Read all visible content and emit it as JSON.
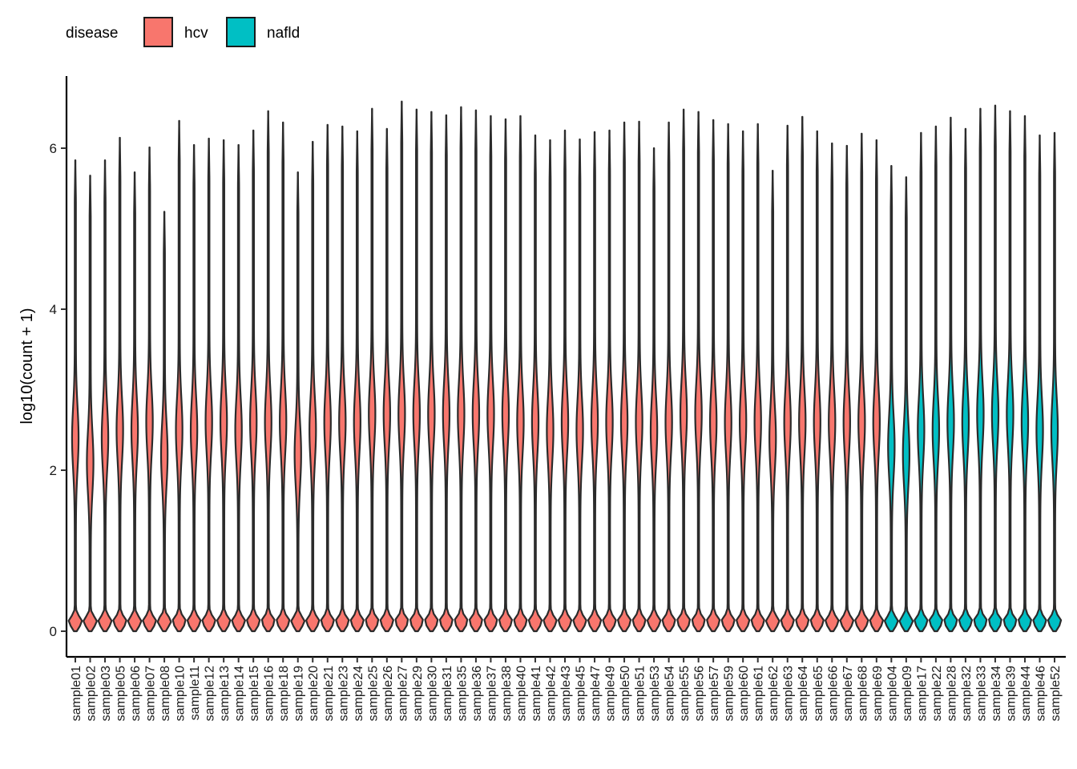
{
  "chart_data": {
    "type": "violin",
    "title": "",
    "xlabel": "",
    "ylabel": "log10(count + 1)",
    "ylim": [
      -0.3,
      6.9
    ],
    "yticks": [
      0,
      2,
      4,
      6
    ],
    "grid": false,
    "legend": {
      "title": "disease",
      "placement": "top-left",
      "items": [
        {
          "label": "hcv",
          "color": "#F8766D"
        },
        {
          "label": "nafld",
          "color": "#00BFC4"
        }
      ]
    },
    "groups": [
      {
        "name": "hcv",
        "color": "#F8766D"
      },
      {
        "name": "nafld",
        "color": "#00BFC4"
      }
    ],
    "categories": [
      "sample01",
      "sample02",
      "sample03",
      "sample05",
      "sample06",
      "sample07",
      "sample08",
      "sample10",
      "sample11",
      "sample12",
      "sample13",
      "sample14",
      "sample15",
      "sample16",
      "sample18",
      "sample19",
      "sample20",
      "sample21",
      "sample23",
      "sample24",
      "sample25",
      "sample26",
      "sample27",
      "sample29",
      "sample30",
      "sample31",
      "sample35",
      "sample36",
      "sample37",
      "sample38",
      "sample40",
      "sample41",
      "sample42",
      "sample43",
      "sample45",
      "sample47",
      "sample49",
      "sample50",
      "sample51",
      "sample53",
      "sample54",
      "sample55",
      "sample56",
      "sample57",
      "sample59",
      "sample60",
      "sample61",
      "sample62",
      "sample63",
      "sample64",
      "sample65",
      "sample66",
      "sample67",
      "sample68",
      "sample69",
      "sample04",
      "sample09",
      "sample17",
      "sample22",
      "sample28",
      "sample32",
      "sample33",
      "sample34",
      "sample39",
      "sample44",
      "sample46",
      "sample52"
    ],
    "disease": [
      "hcv",
      "hcv",
      "hcv",
      "hcv",
      "hcv",
      "hcv",
      "hcv",
      "hcv",
      "hcv",
      "hcv",
      "hcv",
      "hcv",
      "hcv",
      "hcv",
      "hcv",
      "hcv",
      "hcv",
      "hcv",
      "hcv",
      "hcv",
      "hcv",
      "hcv",
      "hcv",
      "hcv",
      "hcv",
      "hcv",
      "hcv",
      "hcv",
      "hcv",
      "hcv",
      "hcv",
      "hcv",
      "hcv",
      "hcv",
      "hcv",
      "hcv",
      "hcv",
      "hcv",
      "hcv",
      "hcv",
      "hcv",
      "hcv",
      "hcv",
      "hcv",
      "hcv",
      "hcv",
      "hcv",
      "hcv",
      "hcv",
      "hcv",
      "hcv",
      "hcv",
      "hcv",
      "hcv",
      "hcv",
      "nafld",
      "nafld",
      "nafld",
      "nafld",
      "nafld",
      "nafld",
      "nafld",
      "nafld",
      "nafld",
      "nafld",
      "nafld",
      "nafld"
    ],
    "ymin": [
      0,
      0,
      0,
      0,
      0,
      0,
      0,
      0,
      0,
      0,
      0,
      0,
      0,
      0,
      0,
      0,
      0,
      0,
      0,
      0,
      0,
      0,
      0,
      0,
      0,
      0,
      0,
      0,
      0,
      0,
      0,
      0,
      0,
      0,
      0,
      0,
      0,
      0,
      0,
      0,
      0,
      0,
      0,
      0,
      0,
      0,
      0,
      0,
      0,
      0,
      0,
      0,
      0,
      0,
      0,
      0,
      0,
      0,
      0,
      0,
      0,
      0,
      0,
      0,
      0,
      0,
      0
    ],
    "ymax": [
      5.85,
      5.66,
      5.85,
      6.13,
      5.7,
      6.01,
      5.21,
      6.34,
      6.04,
      6.12,
      6.1,
      6.04,
      6.22,
      6.46,
      6.32,
      5.7,
      6.08,
      6.29,
      6.27,
      6.21,
      6.49,
      6.24,
      6.58,
      6.48,
      6.45,
      6.41,
      6.51,
      6.47,
      6.4,
      6.36,
      6.4,
      6.16,
      6.1,
      6.22,
      6.11,
      6.2,
      6.22,
      6.32,
      6.33,
      6.0,
      6.32,
      6.48,
      6.45,
      6.35,
      6.3,
      6.21,
      6.3,
      5.72,
      6.28,
      6.39,
      6.21,
      6.06,
      6.03,
      6.18,
      6.1,
      5.78,
      5.64,
      6.19,
      6.27,
      6.38,
      6.24,
      6.49,
      6.53,
      6.46,
      6.4,
      6.16,
      6.19
    ],
    "upper_peak": [
      2.4,
      2.1,
      2.4,
      2.5,
      2.5,
      2.6,
      2.2,
      2.5,
      2.5,
      2.6,
      2.6,
      2.5,
      2.6,
      2.6,
      2.6,
      2.2,
      2.5,
      2.6,
      2.6,
      2.6,
      2.7,
      2.7,
      2.7,
      2.7,
      2.7,
      2.7,
      2.7,
      2.7,
      2.7,
      2.7,
      2.6,
      2.6,
      2.5,
      2.6,
      2.5,
      2.6,
      2.6,
      2.6,
      2.6,
      2.5,
      2.6,
      2.7,
      2.7,
      2.6,
      2.6,
      2.6,
      2.6,
      2.4,
      2.6,
      2.6,
      2.6,
      2.6,
      2.6,
      2.6,
      2.6,
      2.3,
      2.2,
      2.5,
      2.5,
      2.6,
      2.6,
      2.7,
      2.7,
      2.7,
      2.6,
      2.5,
      2.5
    ]
  }
}
